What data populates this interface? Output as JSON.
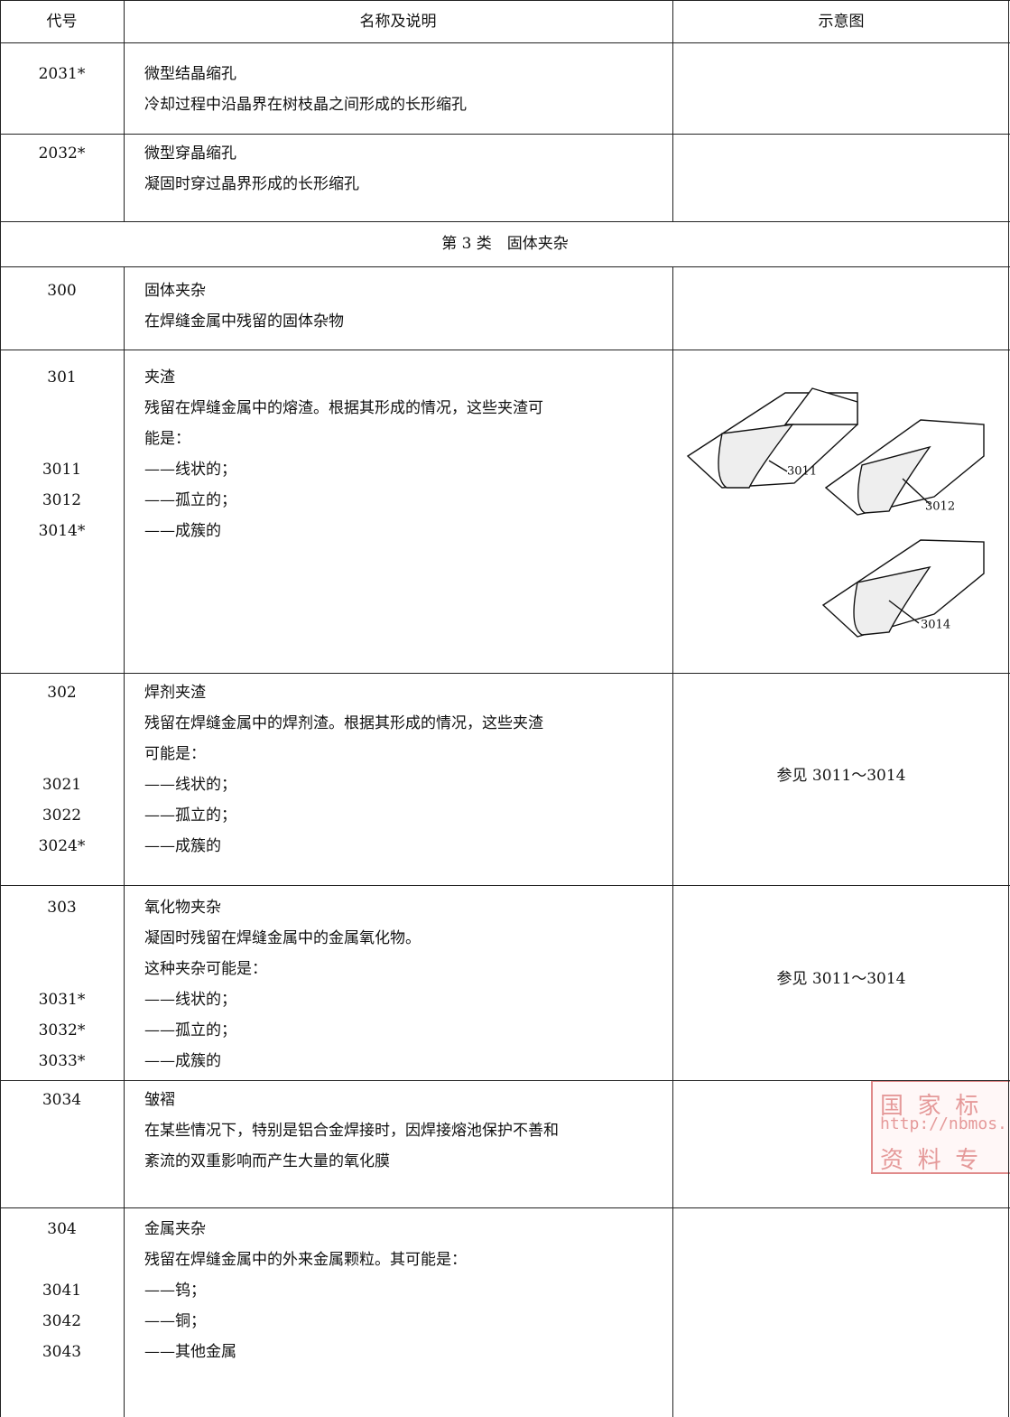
{
  "header": {
    "code": "代号",
    "name": "名称及说明",
    "figure": "示意图"
  },
  "rows": [
    {
      "lines": [
        {
          "code": "2031*",
          "text": "微型结晶缩孔"
        },
        {
          "text": "冷却过程中沿晶界在树枝晶之间形成的长形缩孔"
        }
      ]
    },
    {
      "lines": [
        {
          "code": "2032*",
          "text": "微型穿晶缩孔"
        },
        {
          "text": "凝固时穿过晶界形成的长形缩孔"
        }
      ]
    },
    {
      "section": "第 3 类　固体夹杂"
    },
    {
      "lines": [
        {
          "code": "300",
          "text": "固体夹杂"
        },
        {
          "text": "在焊缝金属中残留的固体杂物"
        }
      ]
    },
    {
      "lines": [
        {
          "code": "301",
          "text": "夹渣"
        },
        {
          "text": "残留在焊缝金属中的熔渣。根据其形成的情况，这些夹渣可"
        },
        {
          "text": "能是："
        },
        {
          "code": "3011",
          "text": "——线状的；"
        },
        {
          "code": "3012",
          "text": "——孤立的；"
        },
        {
          "code": "3014*",
          "text": "——成簇的"
        }
      ],
      "figure_labels": [
        "3011",
        "3012",
        "3014"
      ]
    },
    {
      "lines": [
        {
          "code": "302",
          "text": "焊剂夹渣"
        },
        {
          "text": "残留在焊缝金属中的焊剂渣。根据其形成的情况，这些夹渣"
        },
        {
          "text": "可能是："
        },
        {
          "code": "3021",
          "text": "——线状的；"
        },
        {
          "code": "3022",
          "text": "——孤立的；"
        },
        {
          "code": "3024*",
          "text": "——成簇的"
        }
      ],
      "figure_text": "参见 3011～3014"
    },
    {
      "lines": [
        {
          "code": "303",
          "text": "氧化物夹杂"
        },
        {
          "text": "凝固时残留在焊缝金属中的金属氧化物。"
        },
        {
          "text": "这种夹杂可能是："
        },
        {
          "code": "3031*",
          "text": "——线状的；"
        },
        {
          "code": "3032*",
          "text": "——孤立的；"
        },
        {
          "code": "3033*",
          "text": "——成簇的"
        }
      ],
      "figure_text": "参见 3011～3014"
    },
    {
      "lines": [
        {
          "code": "3034",
          "text": "皱褶"
        },
        {
          "text": "在某些情况下，特别是铝合金焊接时，因焊接熔池保护不善和"
        },
        {
          "text": "紊流的双重影响而产生大量的氧化膜"
        }
      ]
    },
    {
      "lines": [
        {
          "code": "304",
          "text": "金属夹杂"
        },
        {
          "text": "残留在焊缝金属中的外来金属颗粒。其可能是："
        },
        {
          "code": "3041",
          "text": "——钨；"
        },
        {
          "code": "3042",
          "text": "——铜；"
        },
        {
          "code": "3043",
          "text": "——其他金属"
        }
      ]
    }
  ],
  "watermark": [
    "国 家 标",
    "http://nbmos.",
    "资 料 专"
  ]
}
